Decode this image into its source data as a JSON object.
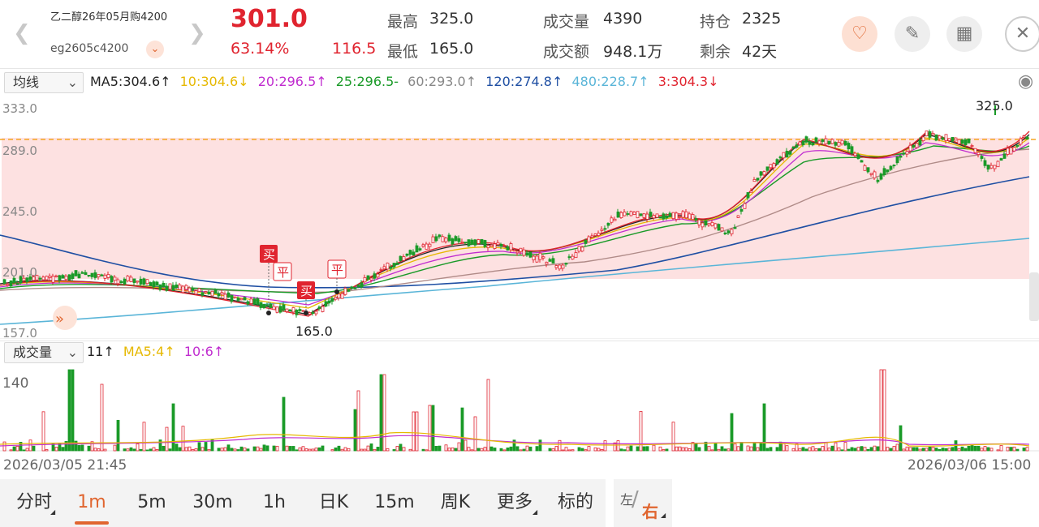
{
  "header": {
    "instrument_name": "乙二醇26年05月购4200",
    "instrument_code": "eg2605c4200",
    "last_price": "301.0",
    "change_pct": "63.14%",
    "change_abs": "116.5",
    "high_label": "最高",
    "high_value": "325.0",
    "low_label": "最低",
    "low_value": "165.0",
    "volume_label": "成交量",
    "volume_value": "4390",
    "turnover_label": "成交额",
    "turnover_value": "948.1万",
    "oi_label": "持仓",
    "oi_value": "2325",
    "remaining_label": "剩余",
    "remaining_value": "42天",
    "colors": {
      "up": "#e0242f",
      "down": "#1a9a28",
      "accent": "#e0652f"
    }
  },
  "icons": [
    "chevron-left-icon",
    "chevron-right-icon",
    "chevron-down-icon",
    "favorite-icon",
    "edit-icon",
    "grid-icon",
    "close-icon",
    "eye-icon",
    "double-chevron-icon"
  ],
  "ma_bar": {
    "selector": "均线",
    "ma5": "MA5:304.6↑",
    "ma10": "10:304.6↓",
    "ma20": "20:296.5↑",
    "ma25": "25:296.5-",
    "ma60": "60:293.0↑",
    "ma120": "120:274.8↑",
    "ma480": "480:228.7↑",
    "ma3": "3:304.3↓"
  },
  "price_chart": {
    "y_labels": [
      "333.0",
      "289.0",
      "245.0",
      "201.0",
      "157.0"
    ],
    "high_marker": "325.0",
    "low_marker": "165.0",
    "buy_label": "买",
    "close_label": "平"
  },
  "volume_bar": {
    "selector": "成交量",
    "vol": "11↑",
    "ma5": "MA5:4↑",
    "ma10": "10:6↑",
    "y_label": "140"
  },
  "dates": {
    "start": "2026/03/05 21:45",
    "end": "2026/03/06 15:00"
  },
  "timeframes": [
    "分时",
    "1m",
    "5m",
    "30m",
    "1h",
    "日K",
    "15m",
    "周K",
    "更多",
    "标的"
  ],
  "active_timeframe": "1m",
  "side_toggle": {
    "left": "左",
    "right": "右"
  }
}
